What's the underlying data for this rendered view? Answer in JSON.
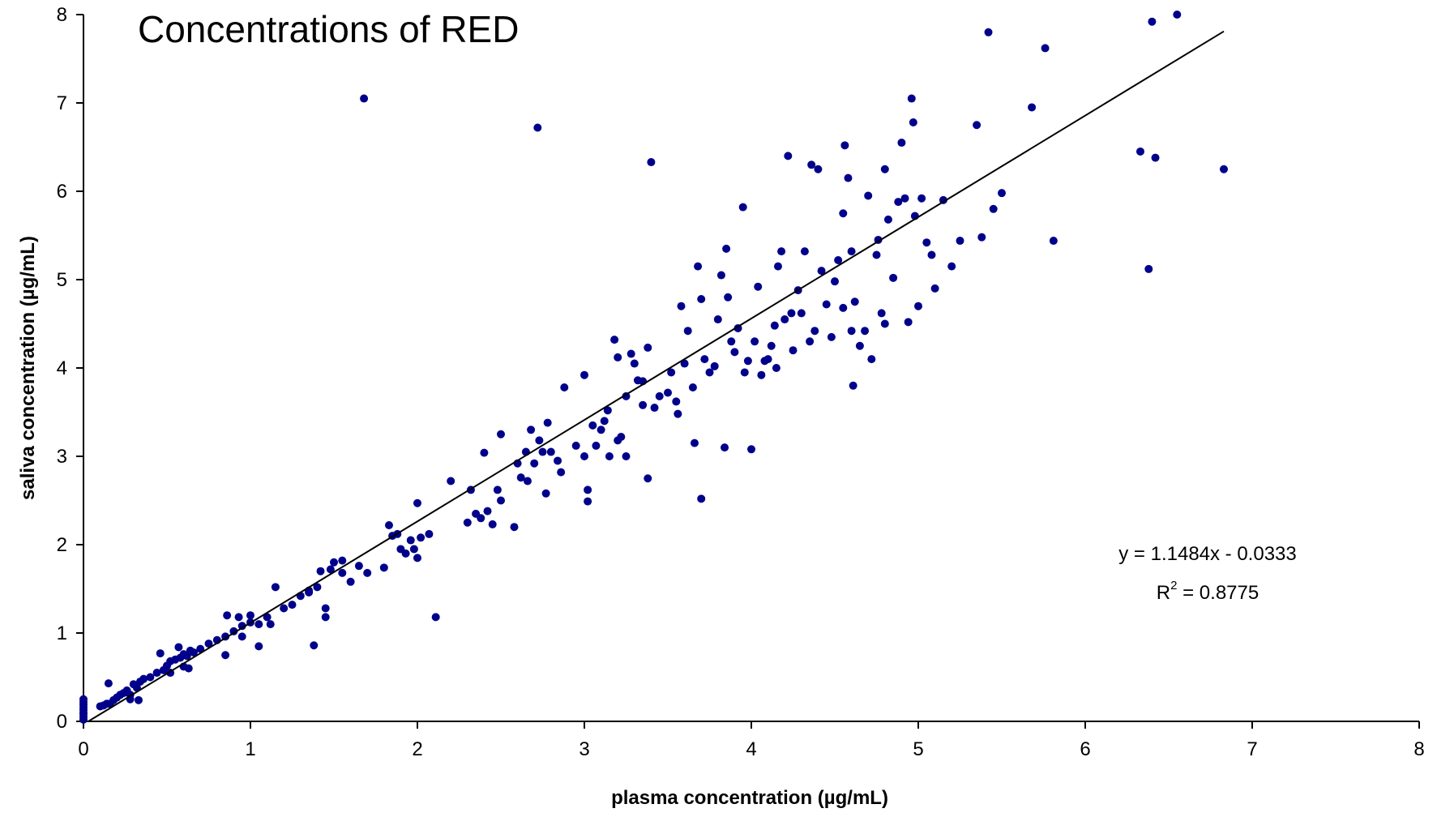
{
  "chart_data": {
    "type": "scatter",
    "title": "Concentrations of RED",
    "xlabel": "plasma concentration (µg/mL)",
    "ylabel": "saliva concentration (µg/mL)",
    "xlim": [
      0,
      8
    ],
    "ylim": [
      0,
      8
    ],
    "xticks": [
      "0",
      "1",
      "2",
      "3",
      "4",
      "5",
      "6",
      "7",
      "8"
    ],
    "yticks": [
      "0",
      "1",
      "2",
      "3",
      "4",
      "5",
      "6",
      "7",
      "8"
    ],
    "grid": false,
    "legend": "none",
    "marker_color": "#00008B",
    "line_color": "#000000",
    "trendline": {
      "slope": 1.1484,
      "intercept": -0.0333,
      "x_range": [
        0.03,
        6.83
      ],
      "equation": "y = 1.1484x - 0.0333",
      "r2_prefix": "R",
      "r2_sup": "2",
      "r2_value": " = 0.8775"
    },
    "series": [
      {
        "points": [
          [
            0.0,
            0.02
          ],
          [
            0.0,
            0.05
          ],
          [
            0.0,
            0.08
          ],
          [
            0.0,
            0.1
          ],
          [
            0.0,
            0.13
          ],
          [
            0.0,
            0.16
          ],
          [
            0.0,
            0.19
          ],
          [
            0.0,
            0.22
          ],
          [
            0.0,
            0.25
          ],
          [
            0.1,
            0.17
          ],
          [
            0.12,
            0.18
          ],
          [
            0.14,
            0.2
          ],
          [
            0.16,
            0.2
          ],
          [
            0.18,
            0.24
          ],
          [
            0.2,
            0.27
          ],
          [
            0.22,
            0.3
          ],
          [
            0.24,
            0.32
          ],
          [
            0.26,
            0.35
          ],
          [
            0.28,
            0.3
          ],
          [
            0.3,
            0.42
          ],
          [
            0.32,
            0.38
          ],
          [
            0.34,
            0.45
          ],
          [
            0.36,
            0.48
          ],
          [
            0.15,
            0.43
          ],
          [
            0.33,
            0.24
          ],
          [
            0.28,
            0.25
          ],
          [
            0.4,
            0.5
          ],
          [
            0.44,
            0.55
          ],
          [
            0.48,
            0.58
          ],
          [
            0.5,
            0.63
          ],
          [
            0.52,
            0.68
          ],
          [
            0.55,
            0.7
          ],
          [
            0.58,
            0.72
          ],
          [
            0.6,
            0.76
          ],
          [
            0.62,
            0.74
          ],
          [
            0.64,
            0.8
          ],
          [
            0.66,
            0.78
          ],
          [
            0.46,
            0.77
          ],
          [
            0.52,
            0.55
          ],
          [
            0.6,
            0.62
          ],
          [
            0.57,
            0.84
          ],
          [
            0.63,
            0.6
          ],
          [
            0.7,
            0.82
          ],
          [
            0.75,
            0.88
          ],
          [
            0.8,
            0.92
          ],
          [
            0.85,
            0.96
          ],
          [
            0.85,
            0.75
          ],
          [
            0.9,
            1.02
          ],
          [
            0.95,
            1.08
          ],
          [
            0.95,
            0.96
          ],
          [
            1.0,
            1.12
          ],
          [
            1.0,
            1.2
          ],
          [
            1.05,
            1.1
          ],
          [
            1.05,
            0.85
          ],
          [
            1.1,
            1.18
          ],
          [
            1.12,
            1.1
          ],
          [
            0.86,
            1.2
          ],
          [
            0.93,
            1.18
          ],
          [
            1.15,
            1.52
          ],
          [
            1.2,
            1.28
          ],
          [
            1.25,
            1.32
          ],
          [
            1.3,
            1.42
          ],
          [
            1.35,
            1.48
          ],
          [
            1.38,
            0.86
          ],
          [
            1.4,
            1.52
          ],
          [
            1.42,
            1.7
          ],
          [
            1.45,
            1.28
          ],
          [
            1.48,
            1.72
          ],
          [
            1.5,
            1.8
          ],
          [
            1.55,
            1.82
          ],
          [
            1.55,
            1.68
          ],
          [
            1.6,
            1.58
          ],
          [
            1.65,
            1.76
          ],
          [
            1.68,
            7.05
          ],
          [
            1.7,
            1.68
          ],
          [
            1.45,
            1.18
          ],
          [
            1.35,
            1.46
          ],
          [
            1.8,
            1.74
          ],
          [
            1.83,
            2.22
          ],
          [
            1.85,
            2.1
          ],
          [
            1.88,
            2.12
          ],
          [
            1.9,
            1.95
          ],
          [
            1.93,
            1.9
          ],
          [
            1.96,
            2.05
          ],
          [
            1.98,
            1.95
          ],
          [
            2.0,
            2.47
          ],
          [
            2.0,
            1.85
          ],
          [
            2.02,
            2.08
          ],
          [
            2.07,
            2.12
          ],
          [
            2.11,
            1.18
          ],
          [
            2.2,
            2.72
          ],
          [
            2.3,
            2.25
          ],
          [
            2.32,
            2.62
          ],
          [
            2.35,
            2.35
          ],
          [
            2.38,
            2.3
          ],
          [
            2.4,
            3.04
          ],
          [
            2.42,
            2.38
          ],
          [
            2.45,
            2.23
          ],
          [
            2.48,
            2.62
          ],
          [
            2.5,
            3.25
          ],
          [
            2.5,
            2.5
          ],
          [
            2.58,
            2.2
          ],
          [
            2.6,
            2.92
          ],
          [
            2.62,
            2.76
          ],
          [
            2.65,
            3.05
          ],
          [
            2.66,
            2.72
          ],
          [
            2.68,
            3.3
          ],
          [
            2.7,
            2.92
          ],
          [
            2.72,
            6.72
          ],
          [
            2.73,
            3.18
          ],
          [
            2.75,
            3.05
          ],
          [
            2.77,
            2.58
          ],
          [
            2.78,
            3.38
          ],
          [
            2.8,
            3.05
          ],
          [
            2.84,
            2.95
          ],
          [
            2.86,
            2.82
          ],
          [
            2.88,
            3.78
          ],
          [
            2.95,
            3.12
          ],
          [
            3.0,
            3.92
          ],
          [
            3.0,
            3.0
          ],
          [
            3.02,
            2.62
          ],
          [
            3.02,
            2.49
          ],
          [
            3.05,
            3.35
          ],
          [
            3.07,
            3.12
          ],
          [
            3.1,
            3.3
          ],
          [
            3.12,
            3.4
          ],
          [
            3.14,
            3.52
          ],
          [
            3.15,
            3.0
          ],
          [
            3.18,
            4.32
          ],
          [
            3.2,
            4.12
          ],
          [
            3.2,
            3.18
          ],
          [
            3.22,
            3.22
          ],
          [
            3.25,
            3.68
          ],
          [
            3.25,
            3.0
          ],
          [
            3.28,
            4.16
          ],
          [
            3.3,
            4.05
          ],
          [
            3.32,
            3.86
          ],
          [
            3.35,
            3.85
          ],
          [
            3.35,
            3.58
          ],
          [
            3.38,
            2.75
          ],
          [
            3.38,
            4.23
          ],
          [
            3.4,
            6.33
          ],
          [
            3.42,
            3.55
          ],
          [
            3.45,
            3.68
          ],
          [
            3.5,
            3.72
          ],
          [
            3.52,
            3.95
          ],
          [
            3.55,
            3.62
          ],
          [
            3.56,
            3.48
          ],
          [
            3.58,
            4.7
          ],
          [
            3.6,
            4.05
          ],
          [
            3.62,
            4.42
          ],
          [
            3.65,
            3.78
          ],
          [
            3.66,
            3.15
          ],
          [
            3.68,
            5.15
          ],
          [
            3.7,
            2.52
          ],
          [
            3.7,
            4.78
          ],
          [
            3.72,
            4.1
          ],
          [
            3.75,
            3.95
          ],
          [
            3.78,
            4.02
          ],
          [
            3.8,
            4.55
          ],
          [
            3.82,
            5.05
          ],
          [
            3.84,
            3.1
          ],
          [
            3.85,
            5.35
          ],
          [
            3.86,
            4.8
          ],
          [
            3.88,
            4.3
          ],
          [
            3.9,
            4.18
          ],
          [
            3.92,
            4.45
          ],
          [
            3.95,
            5.82
          ],
          [
            3.96,
            3.95
          ],
          [
            3.98,
            4.08
          ],
          [
            4.0,
            3.08
          ],
          [
            4.02,
            4.3
          ],
          [
            4.04,
            4.92
          ],
          [
            4.06,
            3.92
          ],
          [
            4.08,
            4.08
          ],
          [
            4.1,
            4.1
          ],
          [
            4.12,
            4.25
          ],
          [
            4.14,
            4.48
          ],
          [
            4.15,
            4.0
          ],
          [
            4.16,
            5.15
          ],
          [
            4.18,
            5.32
          ],
          [
            4.2,
            4.55
          ],
          [
            4.22,
            6.4
          ],
          [
            4.24,
            4.62
          ],
          [
            4.25,
            4.2
          ],
          [
            4.28,
            4.88
          ],
          [
            4.3,
            4.62
          ],
          [
            4.32,
            5.32
          ],
          [
            4.35,
            4.3
          ],
          [
            4.36,
            6.3
          ],
          [
            4.38,
            4.42
          ],
          [
            4.4,
            6.25
          ],
          [
            4.42,
            5.1
          ],
          [
            4.45,
            4.72
          ],
          [
            4.48,
            4.35
          ],
          [
            4.5,
            4.98
          ],
          [
            4.52,
            5.22
          ],
          [
            4.55,
            4.68
          ],
          [
            4.55,
            5.75
          ],
          [
            4.56,
            6.52
          ],
          [
            4.58,
            6.15
          ],
          [
            4.6,
            5.32
          ],
          [
            4.6,
            4.42
          ],
          [
            4.61,
            3.8
          ],
          [
            4.62,
            4.75
          ],
          [
            4.65,
            4.25
          ],
          [
            4.68,
            4.42
          ],
          [
            4.7,
            5.95
          ],
          [
            4.72,
            4.1
          ],
          [
            4.75,
            5.28
          ],
          [
            4.76,
            5.45
          ],
          [
            4.78,
            4.62
          ],
          [
            4.8,
            4.5
          ],
          [
            4.8,
            6.25
          ],
          [
            4.82,
            5.68
          ],
          [
            4.85,
            5.02
          ],
          [
            4.88,
            5.88
          ],
          [
            4.9,
            6.55
          ],
          [
            4.92,
            5.92
          ],
          [
            4.94,
            4.52
          ],
          [
            4.96,
            7.05
          ],
          [
            4.97,
            6.78
          ],
          [
            4.98,
            5.72
          ],
          [
            5.0,
            4.7
          ],
          [
            5.02,
            5.92
          ],
          [
            5.05,
            5.42
          ],
          [
            5.08,
            5.28
          ],
          [
            5.1,
            4.9
          ],
          [
            5.15,
            5.9
          ],
          [
            5.2,
            5.15
          ],
          [
            5.25,
            5.44
          ],
          [
            5.35,
            6.75
          ],
          [
            5.38,
            5.48
          ],
          [
            5.42,
            7.8
          ],
          [
            5.45,
            5.8
          ],
          [
            5.5,
            5.98
          ],
          [
            5.68,
            6.95
          ],
          [
            5.76,
            7.62
          ],
          [
            5.81,
            5.44
          ],
          [
            6.33,
            6.45
          ],
          [
            6.38,
            5.12
          ],
          [
            6.4,
            7.92
          ],
          [
            6.42,
            6.38
          ],
          [
            6.55,
            8.0
          ],
          [
            6.83,
            6.25
          ]
        ]
      }
    ]
  }
}
